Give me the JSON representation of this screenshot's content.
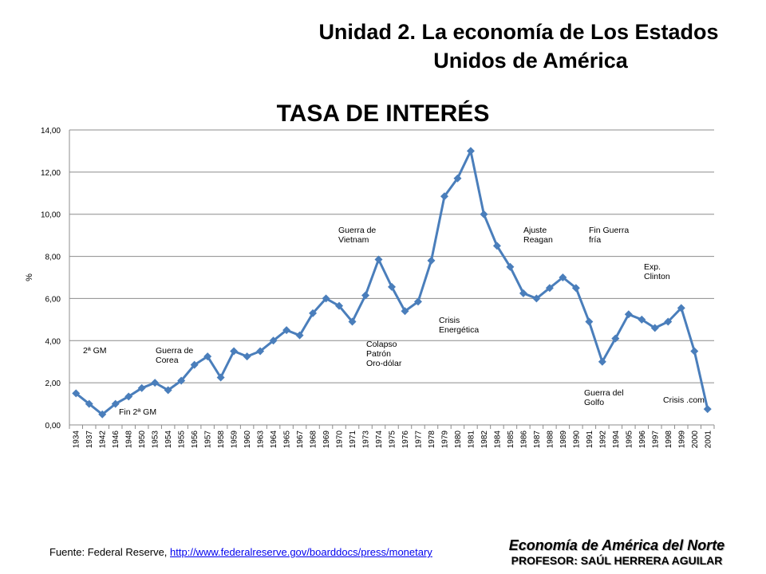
{
  "header": {
    "line1": "Unidad 2. La economía de Los Estados",
    "line2": "Unidos de América"
  },
  "footer": {
    "source_prefix": "Fuente: Federal Reserve, ",
    "source_link": "http://www.federalreserve.gov/boarddocs/press/monetary",
    "course": "Economía de América del Norte",
    "professor": "PROFESOR: SAÚL HERRERA AGUILAR"
  },
  "colors": {
    "line": "#4a7ebb",
    "gridline": "#8c8c8c"
  },
  "chart_data": {
    "type": "line",
    "title": "TASA DE INTERÉS",
    "ylabel": "%",
    "xlabel": "",
    "ylim": [
      0,
      14
    ],
    "yticks": [
      "0,00",
      "2,00",
      "4,00",
      "6,00",
      "8,00",
      "10,00",
      "12,00",
      "14,00"
    ],
    "grid": true,
    "marker": "diamond",
    "categories": [
      "1934",
      "1937",
      "1942",
      "1946",
      "1948",
      "1950",
      "1953",
      "1954",
      "1955",
      "1956",
      "1957",
      "1958",
      "1959",
      "1960",
      "1963",
      "1964",
      "1965",
      "1967",
      "1968",
      "1969",
      "1970",
      "1971",
      "1973",
      "1974",
      "1975",
      "1976",
      "1977",
      "1978",
      "1979",
      "1980",
      "1981",
      "1982",
      "1984",
      "1985",
      "1986",
      "1987",
      "1988",
      "1989",
      "1990",
      "1991",
      "1992",
      "1994",
      "1995",
      "1996",
      "1997",
      "1998",
      "1999",
      "2000",
      "2001"
    ],
    "series": [
      {
        "values": [
          1.5,
          1.0,
          0.5,
          1.0,
          1.35,
          1.75,
          2.0,
          1.65,
          2.1,
          2.85,
          3.25,
          2.25,
          3.5,
          3.25,
          3.5,
          4.0,
          4.5,
          4.25,
          5.3,
          6.0,
          5.65,
          4.9,
          6.15,
          7.85,
          6.55,
          5.4,
          5.85,
          7.8,
          10.85,
          11.7,
          13.0,
          10.0,
          8.5,
          7.5,
          6.25,
          6.0,
          6.5,
          7.0,
          6.5,
          4.9,
          3.0,
          4.1,
          5.25,
          5.0,
          4.6,
          4.9,
          5.55,
          3.5,
          0.75
        ]
      }
    ],
    "annotations": [
      {
        "lines": [
          "2ª GM"
        ],
        "at": "1937"
      },
      {
        "lines": [
          "Fin 2ª GM"
        ],
        "at": "1946"
      },
      {
        "lines": [
          "Guerra de",
          "Corea"
        ],
        "at": "1953"
      },
      {
        "lines": [
          "Guerra de",
          "Vietnam"
        ],
        "at": "1971"
      },
      {
        "lines": [
          "Colapso",
          "Patrón",
          "Oro-dólar"
        ],
        "at": "1974"
      },
      {
        "lines": [
          "Crisis",
          "Energética"
        ],
        "at": "1979"
      },
      {
        "lines": [
          "Ajuste",
          "Reagan"
        ],
        "at": "1987"
      },
      {
        "lines": [
          "Fin Guerra",
          "fría"
        ],
        "at": "1992"
      },
      {
        "lines": [
          "Exp.",
          "Clinton"
        ],
        "at": "1996"
      },
      {
        "lines": [
          "Guerra del",
          "Golfo"
        ],
        "at": "1990"
      },
      {
        "lines": [
          "Crisis .com"
        ],
        "at": "2000"
      }
    ]
  }
}
